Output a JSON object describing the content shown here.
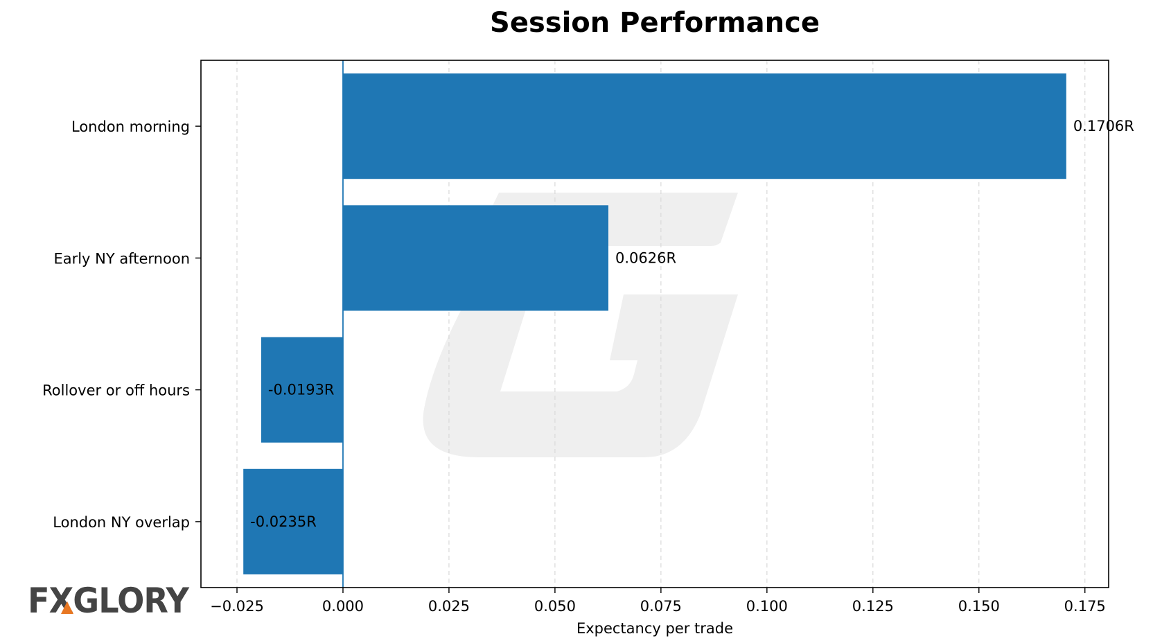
{
  "chart_data": {
    "type": "bar",
    "orientation": "horizontal",
    "title": "Session Performance",
    "xlabel": "Expectancy per trade",
    "ylabel": "",
    "categories": [
      "London morning",
      "Early NY afternoon",
      "Rollover or off hours",
      "London NY overlap"
    ],
    "values": [
      0.1706,
      0.0626,
      -0.0193,
      -0.0235
    ],
    "data_labels": [
      "0.1706R",
      "0.0626R",
      "-0.0193R",
      "-0.0235R"
    ],
    "xlim": [
      -0.0335,
      0.1806
    ],
    "xticks": [
      -0.025,
      0,
      0.025,
      0.05,
      0.075,
      0.1,
      0.125,
      0.15,
      0.175
    ],
    "xtick_labels": [
      "−0.025",
      "0.000",
      "0.025",
      "0.050",
      "0.075",
      "0.100",
      "0.125",
      "0.150",
      "0.175"
    ],
    "grid": "x-dashed",
    "bar_color": "#1f77b4",
    "zero_line_color": "#1f77b4"
  },
  "watermark": {
    "logo_text": "FXGLORY",
    "logo_color": "#444444",
    "accent_color": "#e87722"
  }
}
